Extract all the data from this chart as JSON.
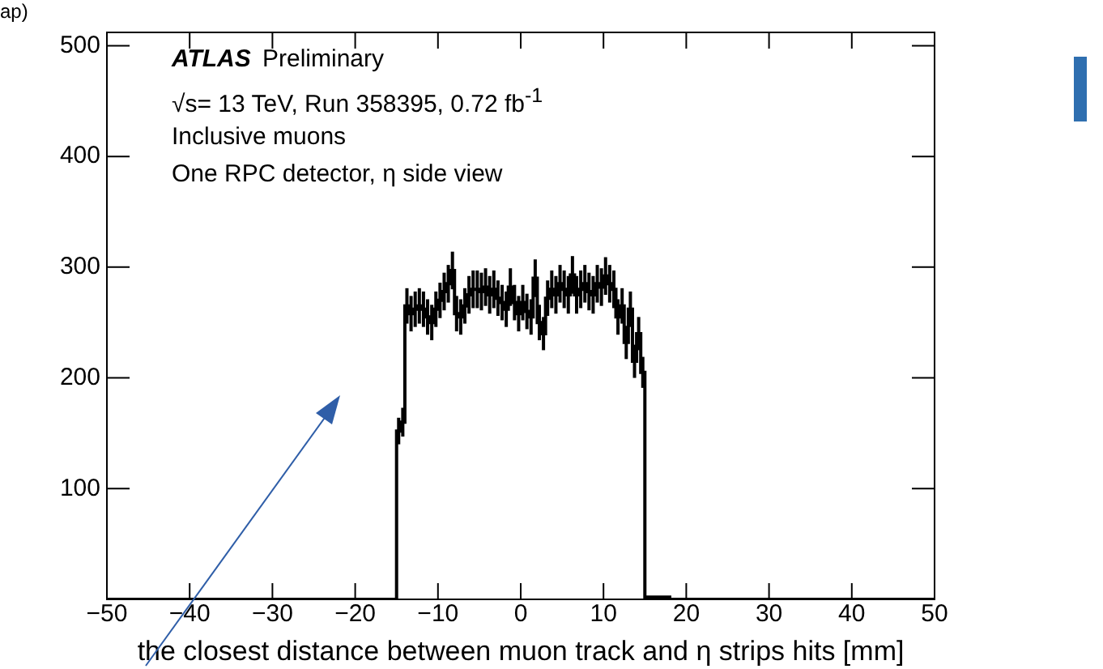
{
  "chart_data": {
    "type": "histogram",
    "xlabel": "the closest distance between muon track and η strips hits [mm]",
    "bins": [
      -50,
      -15,
      -14.5,
      -14,
      -13.5,
      -13,
      -12.5,
      -12,
      -11.5,
      -11,
      -10.5,
      -10,
      -9.5,
      -9,
      -8.5,
      -8,
      -7.5,
      -7,
      -6.5,
      -6,
      -5.5,
      -5,
      -4.5,
      -4,
      -3.5,
      -3,
      -2.5,
      -2,
      -1.5,
      -1,
      -0.5,
      0,
      0.5,
      1,
      1.5,
      2,
      2.5,
      3,
      3.5,
      4,
      4.5,
      5,
      5.5,
      6,
      6.5,
      7,
      7.5,
      8,
      8.5,
      9,
      9.5,
      10,
      10.5,
      11,
      11.5,
      12,
      12.5,
      13,
      13.5,
      14,
      14.5,
      15,
      18,
      50
    ],
    "values": [
      0,
      152,
      160,
      265,
      258,
      262,
      265,
      262,
      255,
      250,
      262,
      270,
      278,
      285,
      297,
      258,
      255,
      265,
      275,
      280,
      280,
      278,
      282,
      275,
      280,
      272,
      268,
      262,
      282,
      268,
      258,
      268,
      260,
      255,
      290,
      250,
      240,
      272,
      280,
      275,
      285,
      280,
      275,
      293,
      275,
      280,
      285,
      278,
      275,
      285,
      282,
      292,
      285,
      280,
      255,
      265,
      232,
      262,
      215,
      240,
      205,
      2,
      0
    ],
    "errors": [
      null,
      12,
      13,
      16,
      16,
      16,
      16,
      16,
      16,
      16,
      16,
      16,
      17,
      17,
      17,
      16,
      16,
      16,
      17,
      17,
      17,
      17,
      17,
      17,
      17,
      16,
      16,
      16,
      17,
      16,
      16,
      16,
      16,
      16,
      17,
      16,
      15,
      16,
      17,
      17,
      17,
      17,
      17,
      17,
      17,
      17,
      17,
      17,
      17,
      17,
      17,
      17,
      17,
      17,
      16,
      16,
      15,
      16,
      15,
      15,
      14,
      null,
      null
    ],
    "color": "#000000",
    "xlim": [
      -50,
      50
    ],
    "xticks": [
      -50,
      -40,
      -30,
      -20,
      -10,
      0,
      10,
      20,
      30,
      40,
      50
    ],
    "ylim": [
      0,
      512
    ],
    "yticks": [
      {
        "value": 0,
        "label": null
      },
      100,
      200,
      300,
      400,
      500
    ],
    "grid": false,
    "legend": false,
    "annotations": [
      "ATLAS",
      "Preliminary",
      "√s= 13 TeV, Run 358395, 0.72 fb$^{-1}$",
      "Inclusive muons",
      "One RPC detector, η side view",
      "ap)"
    ]
  }
}
